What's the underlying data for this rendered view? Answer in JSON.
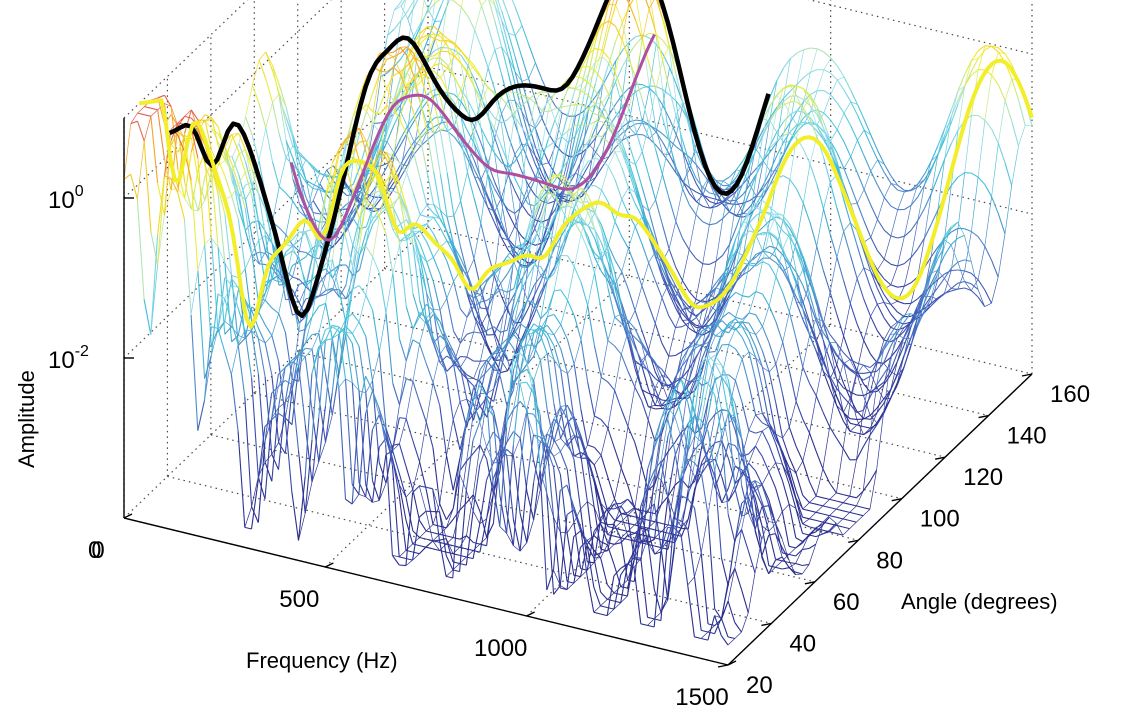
{
  "chart_data": {
    "type": "surface",
    "xlabel": "Frequency (Hz)",
    "ylabel": "Angle (degrees)",
    "zlabel": "Amplitude",
    "x_ticks": [
      "0",
      "500",
      "1000",
      "1500"
    ],
    "y_ticks": [
      "20",
      "40",
      "60",
      "80",
      "100",
      "120",
      "140",
      "160"
    ],
    "z_ticks": [
      {
        "base": "10",
        "exp": "0"
      },
      {
        "base": "10",
        "exp": "-2"
      }
    ],
    "xlim": [
      0,
      1500
    ],
    "ylim": [
      20,
      160
    ],
    "z_scale": "log",
    "grid": true,
    "colormap": [
      "#2b2f8f",
      "#3a4fb0",
      "#4f86c9",
      "#3fbfd8",
      "#9be0e8",
      "#f2ef2a",
      "#f5a623",
      "#d6336c"
    ],
    "highlighted_ridges": [
      {
        "color": "#000000"
      },
      {
        "color": "#f2ef2a"
      },
      {
        "color": "#b04fa0"
      }
    ]
  }
}
